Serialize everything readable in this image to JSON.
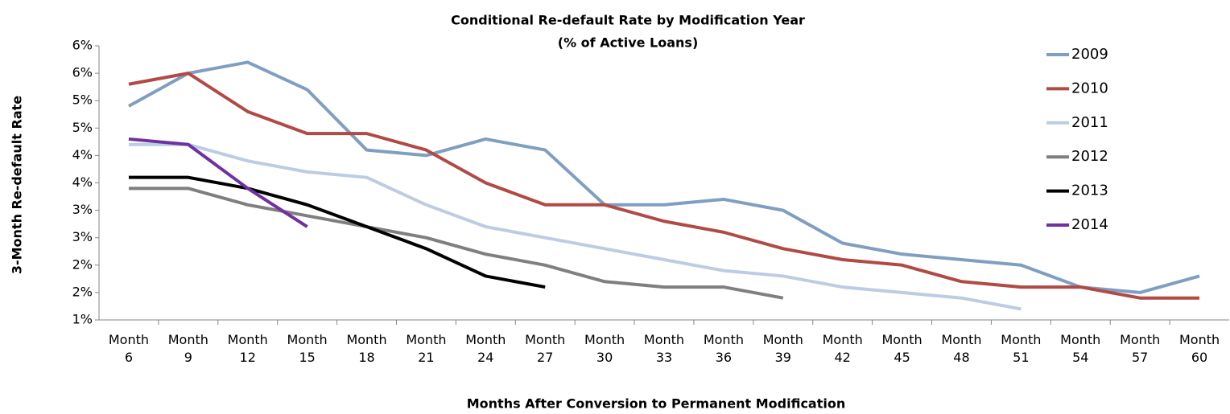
{
  "chart_data": {
    "type": "line",
    "title": "Conditional Re-default Rate by Modification Year",
    "subtitle": "(% of Active Loans)",
    "y_label": "3-Month Re-default Rate",
    "x_label": "Months After Conversion to Permanent Modification",
    "categories": [
      "Month 6",
      "Month 9",
      "Month 12",
      "Month 15",
      "Month 18",
      "Month 21",
      "Month 24",
      "Month 27",
      "Month 30",
      "Month 33",
      "Month 36",
      "Month 39",
      "Month 42",
      "Month 45",
      "Month 48",
      "Month 51",
      "Month 54",
      "Month 57",
      "Month 60"
    ],
    "ylim": [
      1,
      6
    ],
    "yticks": [
      {
        "value": 1,
        "label": "1%"
      },
      {
        "value": 1.5,
        "label": "2%"
      },
      {
        "value": 2,
        "label": "2%"
      },
      {
        "value": 2.5,
        "label": "3%"
      },
      {
        "value": 3,
        "label": "3%"
      },
      {
        "value": 3.5,
        "label": "4%"
      },
      {
        "value": 4,
        "label": "4%"
      },
      {
        "value": 4.5,
        "label": "5%"
      },
      {
        "value": 5,
        "label": "5%"
      },
      {
        "value": 5.5,
        "label": "6%"
      },
      {
        "value": 6,
        "label": "6%"
      }
    ],
    "grid": false,
    "legend": "top-right",
    "series": [
      {
        "name": "2009",
        "color": "#7f9ec2",
        "values": [
          4.9,
          5.5,
          5.7,
          5.2,
          4.1,
          4.0,
          4.3,
          4.1,
          3.1,
          3.1,
          3.2,
          3.0,
          2.4,
          2.2,
          2.1,
          2.0,
          1.6,
          1.5,
          1.8
        ]
      },
      {
        "name": "2010",
        "color": "#b14a45",
        "values": [
          5.3,
          5.5,
          4.8,
          4.4,
          4.4,
          4.1,
          3.5,
          3.1,
          3.1,
          2.8,
          2.6,
          2.3,
          2.1,
          2.0,
          1.7,
          1.6,
          1.6,
          1.4,
          1.4
        ]
      },
      {
        "name": "2011",
        "color": "#bccce3",
        "values": [
          4.2,
          4.2,
          3.9,
          3.7,
          3.6,
          3.1,
          2.7,
          2.5,
          2.3,
          2.1,
          1.9,
          1.8,
          1.6,
          1.5,
          1.4,
          1.2,
          null,
          null,
          null
        ]
      },
      {
        "name": "2012",
        "color": "#7f7f7f",
        "values": [
          3.4,
          3.4,
          3.1,
          2.9,
          2.7,
          2.5,
          2.2,
          2.0,
          1.7,
          1.6,
          1.6,
          1.4,
          null,
          null,
          null,
          null,
          null,
          null,
          null
        ]
      },
      {
        "name": "2013",
        "color": "#000000",
        "values": [
          3.6,
          3.6,
          3.4,
          3.1,
          2.7,
          2.3,
          1.8,
          1.6,
          null,
          null,
          null,
          null,
          null,
          null,
          null,
          null,
          null,
          null,
          null
        ]
      },
      {
        "name": "2014",
        "color": "#7030a0",
        "values": [
          4.3,
          4.2,
          3.4,
          2.7,
          null,
          null,
          null,
          null,
          null,
          null,
          null,
          null,
          null,
          null,
          null,
          null,
          null,
          null,
          null
        ]
      }
    ]
  }
}
